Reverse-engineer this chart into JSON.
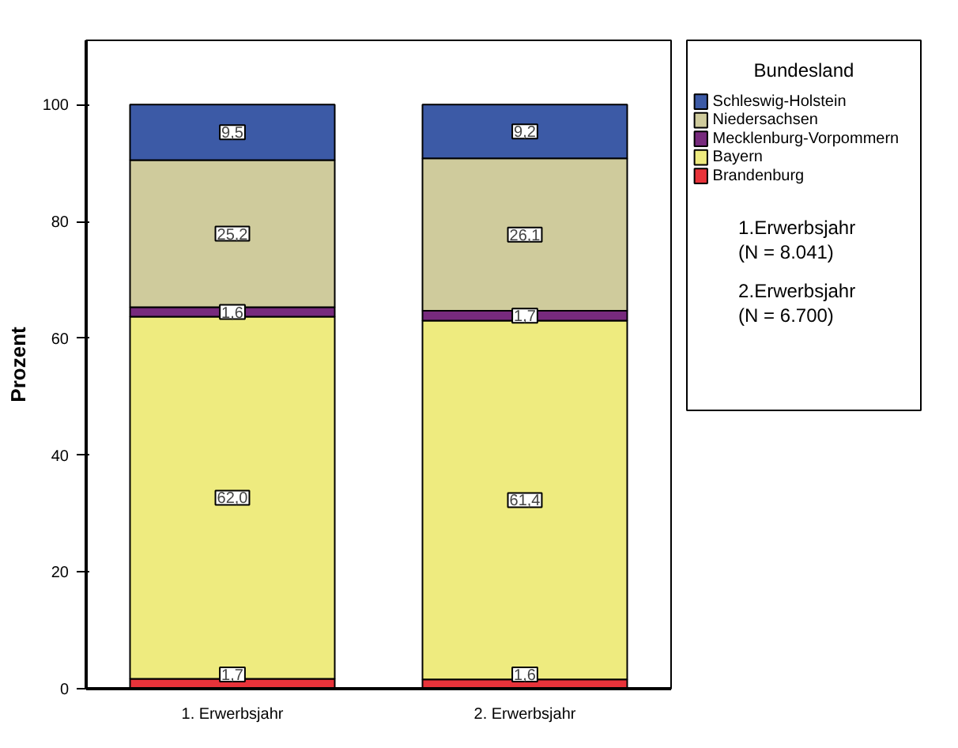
{
  "chart_data": {
    "type": "bar",
    "stacked": true,
    "ylabel": "Prozent",
    "legend_title": "Bundesland",
    "categories": [
      "1. Erwerbsjahr",
      "2. Erwerbsjahr"
    ],
    "series": [
      {
        "name": "Brandenburg",
        "color": "#e8333a",
        "values": [
          1.7,
          1.6
        ],
        "value_labels": [
          "1,7",
          "1,6"
        ]
      },
      {
        "name": "Bayern",
        "color": "#eeeb7f",
        "values": [
          62.0,
          61.4
        ],
        "value_labels": [
          "62,0",
          "61,4"
        ]
      },
      {
        "name": "Mecklenburg-Vorpommern",
        "color": "#772a7d",
        "values": [
          1.6,
          1.7
        ],
        "value_labels": [
          "1,6",
          "1,7"
        ]
      },
      {
        "name": "Niedersachsen",
        "color": "#cfcb9c",
        "values": [
          25.2,
          26.1
        ],
        "value_labels": [
          "25,2",
          "26,1"
        ]
      },
      {
        "name": "Schleswig-Holstein",
        "color": "#3c5aa6",
        "values": [
          9.5,
          9.2
        ],
        "value_labels": [
          "9,5",
          "9,2"
        ]
      }
    ],
    "ylim": [
      0,
      111
    ],
    "yticks": [
      0,
      20,
      40,
      60,
      80,
      100
    ],
    "grid": false,
    "legend": "right",
    "annotations": [
      "1.Erwerbsjahr\n(N = 8.041)",
      "2.Erwerbsjahr\n(N = 6.700)"
    ]
  }
}
